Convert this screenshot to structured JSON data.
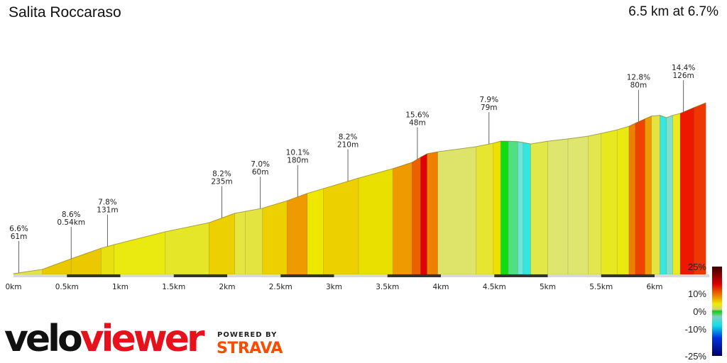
{
  "header": {
    "title": "Salita Roccaraso",
    "summary": "6.5 km at 6.7%"
  },
  "branding": {
    "velo": "velo",
    "viewer": "viewer",
    "powered_by": "POWERED BY",
    "strava": "STRAVA"
  },
  "chart_data": {
    "type": "area",
    "title": "Salita Roccaraso",
    "xlabel": "",
    "ylabel": "",
    "x_unit": "km",
    "xlim": [
      0,
      6.5
    ],
    "x_ticks": [
      "0km",
      "0.5km",
      "1km",
      "1.5km",
      "2km",
      "2.5km",
      "3km",
      "3.5km",
      "4km",
      "4.5km",
      "5km",
      "5.5km",
      "6km"
    ],
    "x_tick_values": [
      0,
      0.5,
      1,
      1.5,
      2,
      2.5,
      3,
      3.5,
      4,
      4.5,
      5,
      5.5,
      6
    ],
    "profile": {
      "distance_km": [
        0,
        0.27,
        0.54,
        0.82,
        0.94,
        1.42,
        1.83,
        2.07,
        2.17,
        2.33,
        2.56,
        2.75,
        2.9,
        3.23,
        3.55,
        3.73,
        3.81,
        3.87,
        3.97,
        4.33,
        4.49,
        4.56,
        4.63,
        4.72,
        4.77,
        4.84,
        5.0,
        5.19,
        5.38,
        5.5,
        5.65,
        5.76,
        5.82,
        5.91,
        5.97,
        6.05,
        6.11,
        6.17,
        6.24,
        6.37,
        6.48
      ],
      "elevation_gain_m": [
        0,
        11,
        38,
        65,
        74,
        107,
        130,
        154,
        159,
        167,
        186,
        205,
        217,
        244,
        268,
        284,
        297,
        306,
        311,
        324,
        333,
        338,
        338,
        337,
        335,
        331,
        338,
        344,
        351,
        358,
        367,
        376,
        384,
        395,
        402,
        404,
        398,
        404,
        409,
        424,
        436
      ],
      "segment_colors": [
        "#e4e448",
        "#ebc800",
        "#ebc800",
        "#e8e010",
        "#eaea10",
        "#e6e628",
        "#ecd000",
        "#e6e640",
        "#e4e440",
        "#ecd000",
        "#ee9a00",
        "#eee800",
        "#ecd000",
        "#eae000",
        "#ee9a00",
        "#ec6000",
        "#e00000",
        "#ee8000",
        "#dee46a",
        "#e6e630",
        "#eee000",
        "#10dc10",
        "#50e080",
        "#70e4d8",
        "#30e8e0",
        "#e2e848",
        "#dee670",
        "#dee670",
        "#e4e650",
        "#e8e820",
        "#eaea10",
        "#ee8000",
        "#ee4400",
        "#ee9a00",
        "#e4e440",
        "#38e8e0",
        "#80e0c8",
        "#eaea20",
        "#ee1800",
        "#ee3800"
      ]
    },
    "annotations": [
      {
        "km": 0.05,
        "grade": "6.6%",
        "length": "61m"
      },
      {
        "km": 0.54,
        "grade": "8.6%",
        "length": "0.54km"
      },
      {
        "km": 0.88,
        "grade": "7.8%",
        "length": "131m"
      },
      {
        "km": 1.95,
        "grade": "8.2%",
        "length": "235m"
      },
      {
        "km": 2.31,
        "grade": "7.0%",
        "length": "60m"
      },
      {
        "km": 2.66,
        "grade": "10.1%",
        "length": "180m"
      },
      {
        "km": 3.13,
        "grade": "8.2%",
        "length": "210m"
      },
      {
        "km": 3.78,
        "grade": "15.6%",
        "length": "48m"
      },
      {
        "km": 4.45,
        "grade": "7.9%",
        "length": "79m"
      },
      {
        "km": 5.85,
        "grade": "12.8%",
        "length": "80m"
      },
      {
        "km": 6.27,
        "grade": "14.4%",
        "length": "126m"
      }
    ],
    "legend": {
      "labels": [
        "25%",
        "10%",
        "0%",
        "-10%",
        "-25%"
      ],
      "values": [
        25,
        10,
        0,
        -10,
        -25
      ],
      "gradient_stops": [
        {
          "value": 25,
          "color": "#3a0000"
        },
        {
          "value": 15,
          "color": "#e00000"
        },
        {
          "value": 8,
          "color": "#ee9000"
        },
        {
          "value": 4,
          "color": "#eeee00"
        },
        {
          "value": 1,
          "color": "#d0d080"
        },
        {
          "value": 0,
          "color": "#10cc10"
        },
        {
          "value": -3,
          "color": "#80d0c0"
        },
        {
          "value": -8,
          "color": "#10e0e8"
        },
        {
          "value": -15,
          "color": "#0030e0"
        },
        {
          "value": -25,
          "color": "#000060"
        }
      ]
    }
  }
}
